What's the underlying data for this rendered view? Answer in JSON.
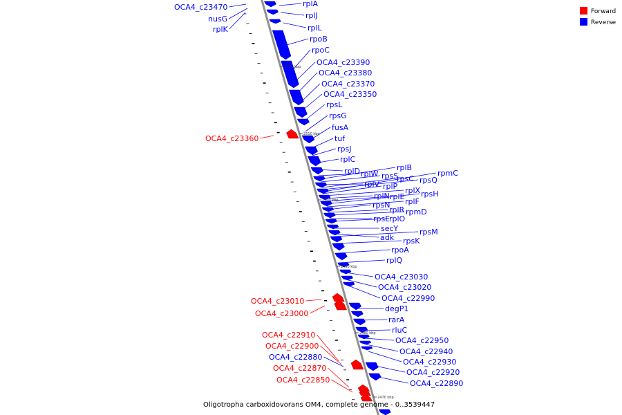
{
  "colors": {
    "forward": "#ff0000",
    "reverse": "#0000ff",
    "backbone": "#909090",
    "line": "#000000"
  },
  "legend": [
    {
      "label": "Forward",
      "color": "#ff0000"
    },
    {
      "label": "Reverse",
      "color": "#0000ff"
    }
  ],
  "caption": "Oligotropha carboxidovorans OM4, complete genome - 0..3539447",
  "ticks": [
    "2520 kbp",
    "2510 kbp",
    "2500 kbp",
    "2490 kbp",
    "2480 kbp",
    "2470 kbp"
  ],
  "genes": [
    {
      "name": "OCA4_c23470",
      "strand": "reverse"
    },
    {
      "name": "nusG",
      "strand": "reverse"
    },
    {
      "name": "rplK",
      "strand": "reverse"
    },
    {
      "name": "rplA",
      "strand": "reverse"
    },
    {
      "name": "rplJ",
      "strand": "reverse"
    },
    {
      "name": "rplL",
      "strand": "reverse"
    },
    {
      "name": "rpoB",
      "strand": "reverse"
    },
    {
      "name": "rpoC",
      "strand": "reverse"
    },
    {
      "name": "OCA4_c23390",
      "strand": "reverse"
    },
    {
      "name": "OCA4_c23380",
      "strand": "reverse"
    },
    {
      "name": "OCA4_c23370",
      "strand": "reverse"
    },
    {
      "name": "OCA4_c23350",
      "strand": "reverse"
    },
    {
      "name": "rpsL",
      "strand": "reverse"
    },
    {
      "name": "rpsG",
      "strand": "reverse"
    },
    {
      "name": "fusA",
      "strand": "reverse"
    },
    {
      "name": "OCA4_c23360",
      "strand": "forward"
    },
    {
      "name": "tuf",
      "strand": "reverse"
    },
    {
      "name": "rpsJ",
      "strand": "reverse"
    },
    {
      "name": "rplC",
      "strand": "reverse"
    },
    {
      "name": "rplD",
      "strand": "reverse"
    },
    {
      "name": "rplW",
      "strand": "reverse"
    },
    {
      "name": "rplB",
      "strand": "reverse"
    },
    {
      "name": "rpsS",
      "strand": "reverse"
    },
    {
      "name": "rplV",
      "strand": "reverse"
    },
    {
      "name": "rpsC",
      "strand": "reverse"
    },
    {
      "name": "rpsQ",
      "strand": "reverse"
    },
    {
      "name": "rpmC",
      "strand": "reverse"
    },
    {
      "name": "rplP",
      "strand": "reverse"
    },
    {
      "name": "rplX",
      "strand": "reverse"
    },
    {
      "name": "rplN",
      "strand": "reverse"
    },
    {
      "name": "rplE",
      "strand": "reverse"
    },
    {
      "name": "rpsH",
      "strand": "reverse"
    },
    {
      "name": "rplF",
      "strand": "reverse"
    },
    {
      "name": "rpsN",
      "strand": "reverse"
    },
    {
      "name": "rplR",
      "strand": "reverse"
    },
    {
      "name": "rpmD",
      "strand": "reverse"
    },
    {
      "name": "rpsE",
      "strand": "reverse"
    },
    {
      "name": "rplO",
      "strand": "reverse"
    },
    {
      "name": "secY",
      "strand": "reverse"
    },
    {
      "name": "rpsM",
      "strand": "reverse"
    },
    {
      "name": "adk",
      "strand": "reverse"
    },
    {
      "name": "rpsK",
      "strand": "reverse"
    },
    {
      "name": "rpoA",
      "strand": "reverse"
    },
    {
      "name": "rplQ",
      "strand": "reverse"
    },
    {
      "name": "OCA4_c23030",
      "strand": "reverse"
    },
    {
      "name": "OCA4_c23020",
      "strand": "reverse"
    },
    {
      "name": "OCA4_c22990",
      "strand": "reverse"
    },
    {
      "name": "OCA4_c23010",
      "strand": "forward"
    },
    {
      "name": "degP1",
      "strand": "reverse"
    },
    {
      "name": "OCA4_c23000",
      "strand": "forward"
    },
    {
      "name": "rarA",
      "strand": "reverse"
    },
    {
      "name": "rluC",
      "strand": "reverse"
    },
    {
      "name": "OCA4_c22910",
      "strand": "forward"
    },
    {
      "name": "OCA4_c22950",
      "strand": "reverse"
    },
    {
      "name": "OCA4_c22900",
      "strand": "forward"
    },
    {
      "name": "OCA4_c22940",
      "strand": "reverse"
    },
    {
      "name": "OCA4_c22880",
      "strand": "reverse"
    },
    {
      "name": "OCA4_c22930",
      "strand": "reverse"
    },
    {
      "name": "OCA4_c22870",
      "strand": "forward"
    },
    {
      "name": "OCA4_c22920",
      "strand": "reverse"
    },
    {
      "name": "OCA4_c22850",
      "strand": "forward"
    },
    {
      "name": "OCA4_c22890",
      "strand": "reverse"
    }
  ]
}
